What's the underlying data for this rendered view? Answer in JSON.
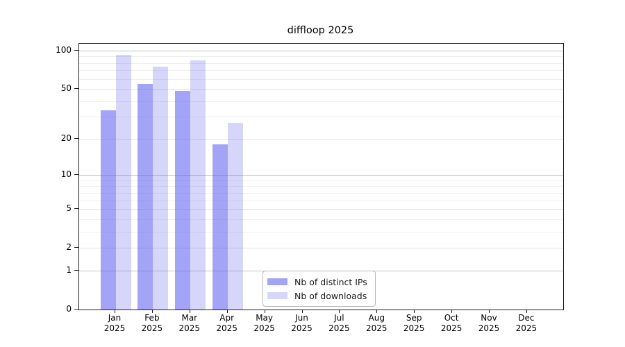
{
  "chart_data": {
    "type": "bar",
    "title": "diffloop 2025",
    "year": "2025",
    "categories": [
      "Jan",
      "Feb",
      "Mar",
      "Apr",
      "May",
      "Jun",
      "Jul",
      "Aug",
      "Sep",
      "Oct",
      "Nov",
      "Dec"
    ],
    "series": [
      {
        "name": "Nb of distinct IPs",
        "color": "#5a5af0",
        "alpha": 0.55,
        "values": [
          34,
          55,
          48,
          18,
          null,
          null,
          null,
          null,
          null,
          null,
          null,
          null
        ]
      },
      {
        "name": "Nb of downloads",
        "color": "#5a5af0",
        "alpha": 0.25,
        "values": [
          93,
          75,
          84,
          27,
          null,
          null,
          null,
          null,
          null,
          null,
          null,
          null
        ]
      }
    ],
    "y_axis": {
      "scale": "log1p",
      "labeled_ticks": [
        0,
        1,
        2,
        5,
        10,
        20,
        50,
        100
      ],
      "major_gridlines": [
        1,
        2,
        5,
        10,
        20,
        50,
        100
      ],
      "emphasized_gridlines": [
        1,
        10,
        100
      ],
      "minor_gridlines": [
        3,
        4,
        6,
        7,
        8,
        9,
        30,
        40,
        60,
        70,
        80,
        90
      ],
      "max_value": 113,
      "min_value": 0
    },
    "x_axis": {
      "grid": false
    },
    "legend": {
      "position": "lower center-left",
      "entry_count": 2
    }
  }
}
